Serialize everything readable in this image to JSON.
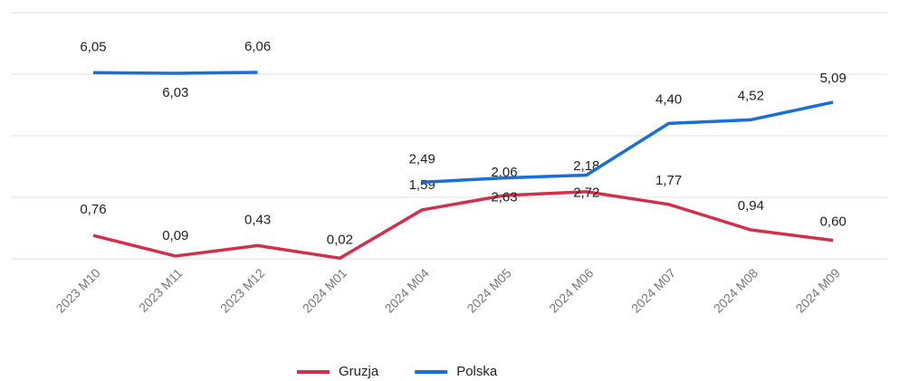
{
  "chart_data": {
    "type": "line",
    "categories": [
      "2023 M10",
      "2023 M11",
      "2023 M12",
      "2024 M01",
      "2024 M04",
      "2024 M05",
      "2024 M06",
      "2024 M07",
      "2024 M08",
      "2024 M09"
    ],
    "series": [
      {
        "name": "Gruzja",
        "color": "#d2304a",
        "values": [
          0.76,
          0.09,
          0.43,
          0.02,
          1.59,
          2.06,
          2.18,
          1.77,
          0.94,
          0.6
        ],
        "value_labels": [
          "0,76",
          "0,09",
          "0,43",
          "0,02",
          "1,59",
          "2,06",
          "2,18",
          "1,77",
          "0,94",
          "0,60"
        ]
      },
      {
        "name": "Polska",
        "color": "#1a6fd6",
        "values": [
          6.05,
          6.03,
          6.06,
          null,
          2.49,
          2.63,
          2.72,
          4.4,
          4.52,
          5.09
        ],
        "value_labels": [
          "6,05",
          "6,03",
          "6,06",
          null,
          "2,49",
          "2,63",
          "2,72",
          "4,40",
          "4,52",
          "5,09"
        ]
      }
    ],
    "ylim": [
      0,
      8
    ],
    "yticks": [
      0,
      2,
      4,
      6,
      8
    ],
    "grid": true,
    "legend": "bottom"
  }
}
